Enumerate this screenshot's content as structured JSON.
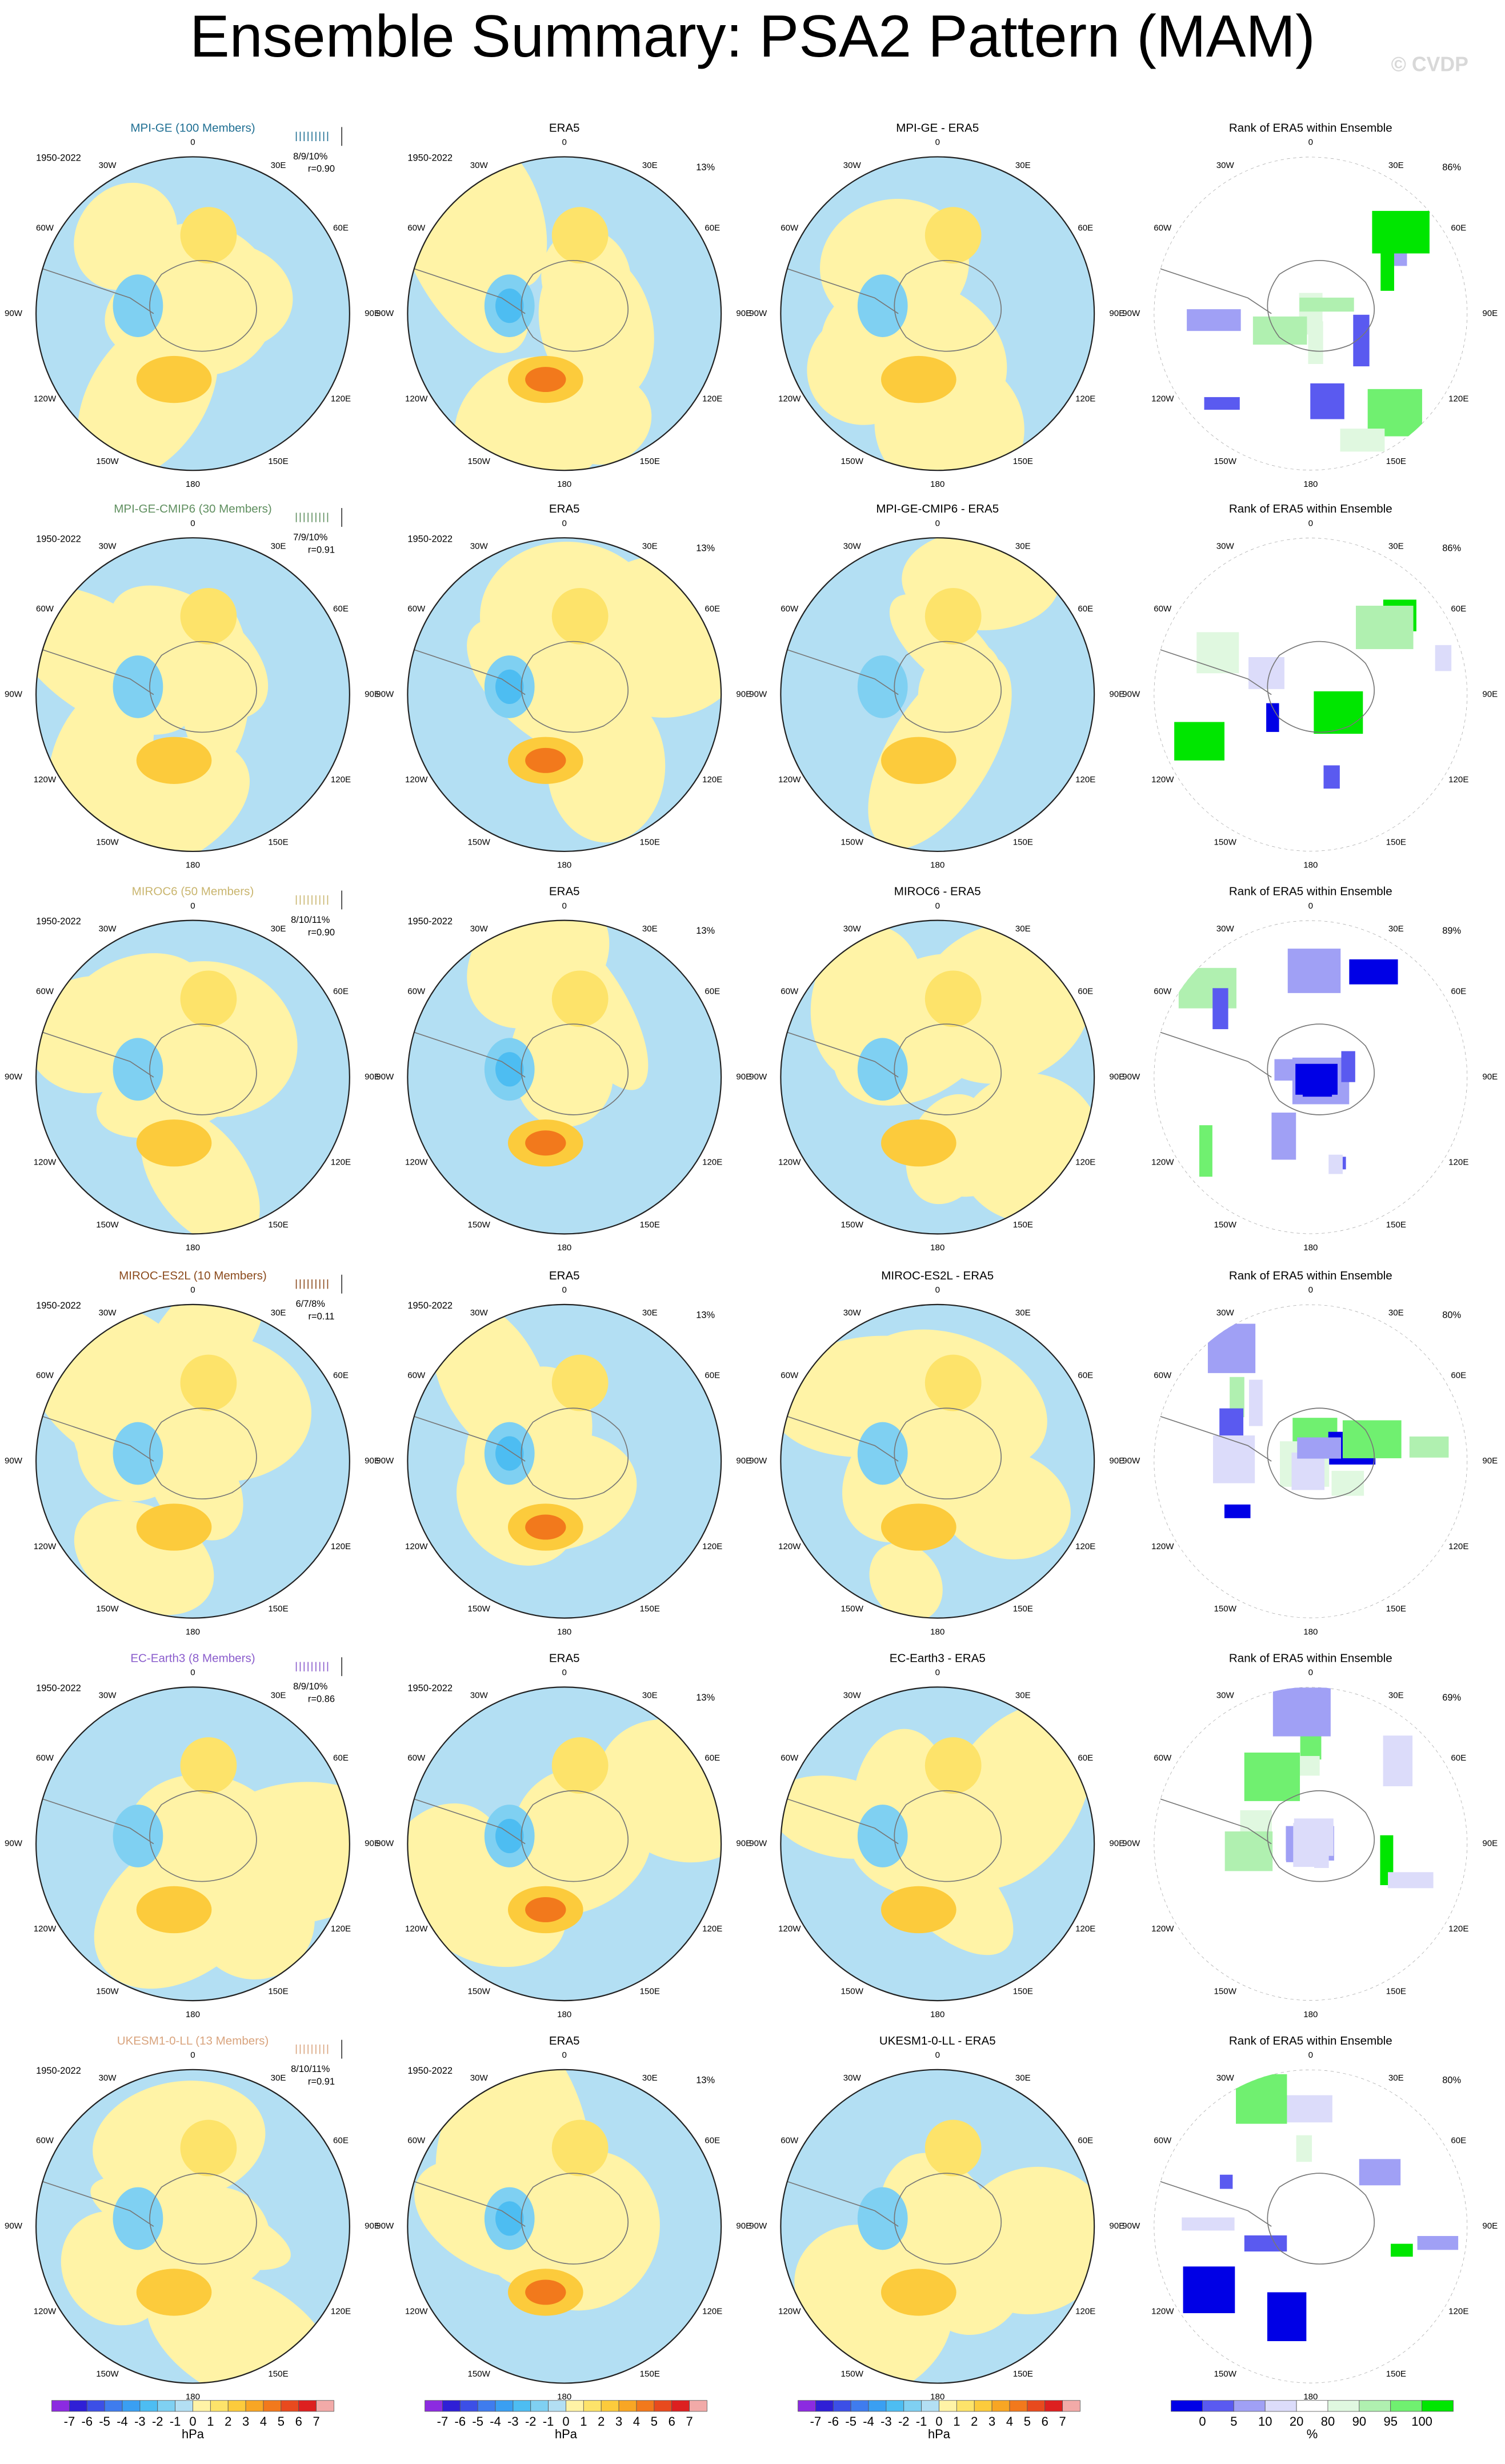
{
  "title": "Ensemble Summary: PSA2 Pattern (MAM)",
  "watermark": "© CVDP",
  "longitude_labels": [
    "0",
    "30E",
    "60E",
    "90E",
    "120E",
    "150E",
    "180",
    "150W",
    "120W",
    "90W",
    "60W",
    "30W"
  ],
  "rows": [
    {
      "model_title": "MPI-GE (100 Members)",
      "model_color": "#1f6f93",
      "period": "1950-2022",
      "rank_label": "8/9/10%",
      "r_label": "r=0.90",
      "era5_title": "ERA5",
      "era5_period": "1950-2022",
      "era5_pct": "13%",
      "diff_title": "MPI-GE - ERA5",
      "rank_title": "Rank of ERA5 within Ensemble",
      "rank_pct": "86%"
    },
    {
      "model_title": "MPI-GE-CMIP6 (30 Members)",
      "model_color": "#5f8f5f",
      "period": "1950-2022",
      "rank_label": "7/9/10%",
      "r_label": "r=0.91",
      "era5_title": "ERA5",
      "era5_period": "1950-2022",
      "era5_pct": "13%",
      "diff_title": "MPI-GE-CMIP6 - ERA5",
      "rank_title": "Rank of ERA5 within Ensemble",
      "rank_pct": "86%"
    },
    {
      "model_title": "MIROC6 (50 Members)",
      "model_color": "#c9b56e",
      "period": "1950-2022",
      "rank_label": "8/10/11%",
      "r_label": "r=0.90",
      "era5_title": "ERA5",
      "era5_period": "1950-2022",
      "era5_pct": "13%",
      "diff_title": "MIROC6 - ERA5",
      "rank_title": "Rank of ERA5 within Ensemble",
      "rank_pct": "89%"
    },
    {
      "model_title": "MIROC-ES2L (10 Members)",
      "model_color": "#8b4a1c",
      "period": "1950-2022",
      "rank_label": "6/7/8%",
      "r_label": "r=0.11",
      "era5_title": "ERA5",
      "era5_period": "1950-2022",
      "era5_pct": "13%",
      "diff_title": "MIROC-ES2L - ERA5",
      "rank_title": "Rank of ERA5 within Ensemble",
      "rank_pct": "80%"
    },
    {
      "model_title": "EC-Earth3 (8 Members)",
      "model_color": "#8a5ccc",
      "period": "1950-2022",
      "rank_label": "8/9/10%",
      "r_label": "r=0.86",
      "era5_title": "ERA5",
      "era5_period": "1950-2022",
      "era5_pct": "13%",
      "diff_title": "EC-Earth3 - ERA5",
      "rank_title": "Rank of ERA5 within Ensemble",
      "rank_pct": "69%"
    },
    {
      "model_title": "UKESM1-0-LL (13 Members)",
      "model_color": "#d9a47e",
      "period": "1950-2022",
      "rank_label": "8/10/11%",
      "r_label": "r=0.91",
      "era5_title": "ERA5",
      "era5_period": "1950-2022",
      "era5_pct": "13%",
      "diff_title": "UKESM1-0-LL - ERA5",
      "rank_title": "Rank of ERA5 within Ensemble",
      "rank_pct": "80%"
    }
  ],
  "pressure_colorbar": {
    "labels": [
      "-7",
      "-6",
      "-5",
      "-4",
      "-3",
      "-2",
      "-1",
      "0",
      "1",
      "2",
      "3",
      "4",
      "5",
      "6",
      "7"
    ],
    "units": "hPa",
    "colors": [
      "#8c2be0",
      "#2f1fd6",
      "#3c4fe6",
      "#3f7cee",
      "#3a9ff2",
      "#4dbdf2",
      "#7fd0f2",
      "#b3dff3",
      "#fff3a6",
      "#fde36a",
      "#fccb3c",
      "#f8a624",
      "#f2791c",
      "#e84a1e",
      "#dd2020",
      "#f2aaa8"
    ]
  },
  "rank_colorbar": {
    "labels": [
      "0",
      "5",
      "10",
      "20",
      "80",
      "90",
      "95",
      "100"
    ],
    "units": "%",
    "colors": [
      "#0000e6",
      "#5a5af0",
      "#a0a0f5",
      "#dcdcfa",
      "#ffffff",
      "#e0f8e0",
      "#b0f0b0",
      "#70f070",
      "#00e600"
    ]
  }
}
